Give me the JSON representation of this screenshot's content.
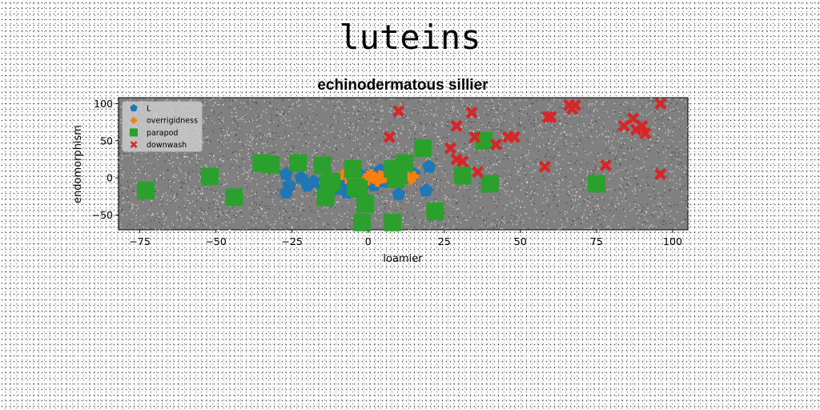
{
  "suptitle": "luteins",
  "chart_data": {
    "type": "scatter",
    "title": "echinodermatous sillier",
    "xlabel": "loamier",
    "ylabel": "endomorphism",
    "xlim": [
      -82,
      105
    ],
    "ylim": [
      -70,
      108
    ],
    "xticks": [
      -75,
      -50,
      -25,
      0,
      25,
      50,
      75,
      100
    ],
    "yticks": [
      -50,
      0,
      50,
      100
    ],
    "xtick_labels": [
      "−75",
      "−50",
      "−25",
      "0",
      "25",
      "50",
      "75",
      "100"
    ],
    "ytick_labels": [
      "−50",
      "0",
      "50",
      "100"
    ],
    "legend_position": "upper-left",
    "series": [
      {
        "name": "L",
        "marker": "pentagon",
        "color": "#1f77b4",
        "points": [
          [
            -27,
            5
          ],
          [
            -26,
            -10
          ],
          [
            -27,
            -20
          ],
          [
            -22,
            0
          ],
          [
            -20,
            -10
          ],
          [
            -18,
            -5
          ],
          [
            -15,
            -15
          ],
          [
            -13,
            -5
          ],
          [
            -10,
            -15
          ],
          [
            -8,
            -5
          ],
          [
            -7,
            -20
          ],
          [
            -5,
            -10
          ],
          [
            -3,
            5
          ],
          [
            -2,
            -15
          ],
          [
            1,
            5
          ],
          [
            2,
            -10
          ],
          [
            4,
            10
          ],
          [
            5,
            -5
          ],
          [
            7,
            8
          ],
          [
            9,
            -2
          ],
          [
            10,
            -22
          ],
          [
            13,
            0
          ],
          [
            15,
            5
          ],
          [
            19,
            -17
          ],
          [
            20,
            15
          ]
        ]
      },
      {
        "name": "overrigidness",
        "marker": "plus",
        "color": "#ff7f0e",
        "points": [
          [
            -10,
            0
          ],
          [
            -8,
            5
          ],
          [
            -6,
            -5
          ],
          [
            -4,
            0
          ],
          [
            -2,
            -5
          ],
          [
            0,
            3
          ],
          [
            0,
            -3
          ],
          [
            1,
            5
          ],
          [
            2,
            0
          ],
          [
            3,
            -5
          ],
          [
            4,
            3
          ],
          [
            5,
            0
          ],
          [
            6,
            5
          ],
          [
            7,
            -3
          ],
          [
            8,
            0
          ],
          [
            9,
            3
          ],
          [
            10,
            -3
          ],
          [
            11,
            5
          ],
          [
            12,
            0
          ],
          [
            13,
            3
          ],
          [
            14,
            -2
          ],
          [
            15,
            2
          ]
        ]
      },
      {
        "name": "parapod",
        "marker": "square",
        "color": "#2ca02c",
        "points": [
          [
            -73,
            -17
          ],
          [
            -52,
            2
          ],
          [
            -44,
            -26
          ],
          [
            -35,
            20
          ],
          [
            -32,
            18
          ],
          [
            -23,
            20
          ],
          [
            -15,
            17
          ],
          [
            -14,
            -26
          ],
          [
            -13,
            -8
          ],
          [
            -12,
            -5
          ],
          [
            -5,
            12
          ],
          [
            -4,
            -12
          ],
          [
            -3,
            -15
          ],
          [
            -2,
            -60
          ],
          [
            -1,
            -35
          ],
          [
            8,
            12
          ],
          [
            8,
            -60
          ],
          [
            9,
            -2
          ],
          [
            10,
            5
          ],
          [
            12,
            20
          ],
          [
            18,
            40
          ],
          [
            22,
            -45
          ],
          [
            31,
            3
          ],
          [
            38,
            50
          ],
          [
            40,
            -8
          ],
          [
            75,
            -8
          ]
        ]
      },
      {
        "name": "downwash",
        "marker": "x",
        "color": "#d62728",
        "points": [
          [
            7,
            55
          ],
          [
            10,
            90
          ],
          [
            27,
            40
          ],
          [
            29,
            70
          ],
          [
            29,
            25
          ],
          [
            31,
            22
          ],
          [
            34,
            88
          ],
          [
            35,
            55
          ],
          [
            36,
            8
          ],
          [
            42,
            45
          ],
          [
            46,
            55
          ],
          [
            48,
            55
          ],
          [
            58,
            15
          ],
          [
            59,
            82
          ],
          [
            60,
            82
          ],
          [
            66,
            98
          ],
          [
            67,
            93
          ],
          [
            68,
            98
          ],
          [
            78,
            17
          ],
          [
            84,
            70
          ],
          [
            87,
            80
          ],
          [
            88,
            65
          ],
          [
            90,
            70
          ],
          [
            91,
            60
          ],
          [
            96,
            100
          ],
          [
            96,
            5
          ]
        ]
      }
    ]
  }
}
